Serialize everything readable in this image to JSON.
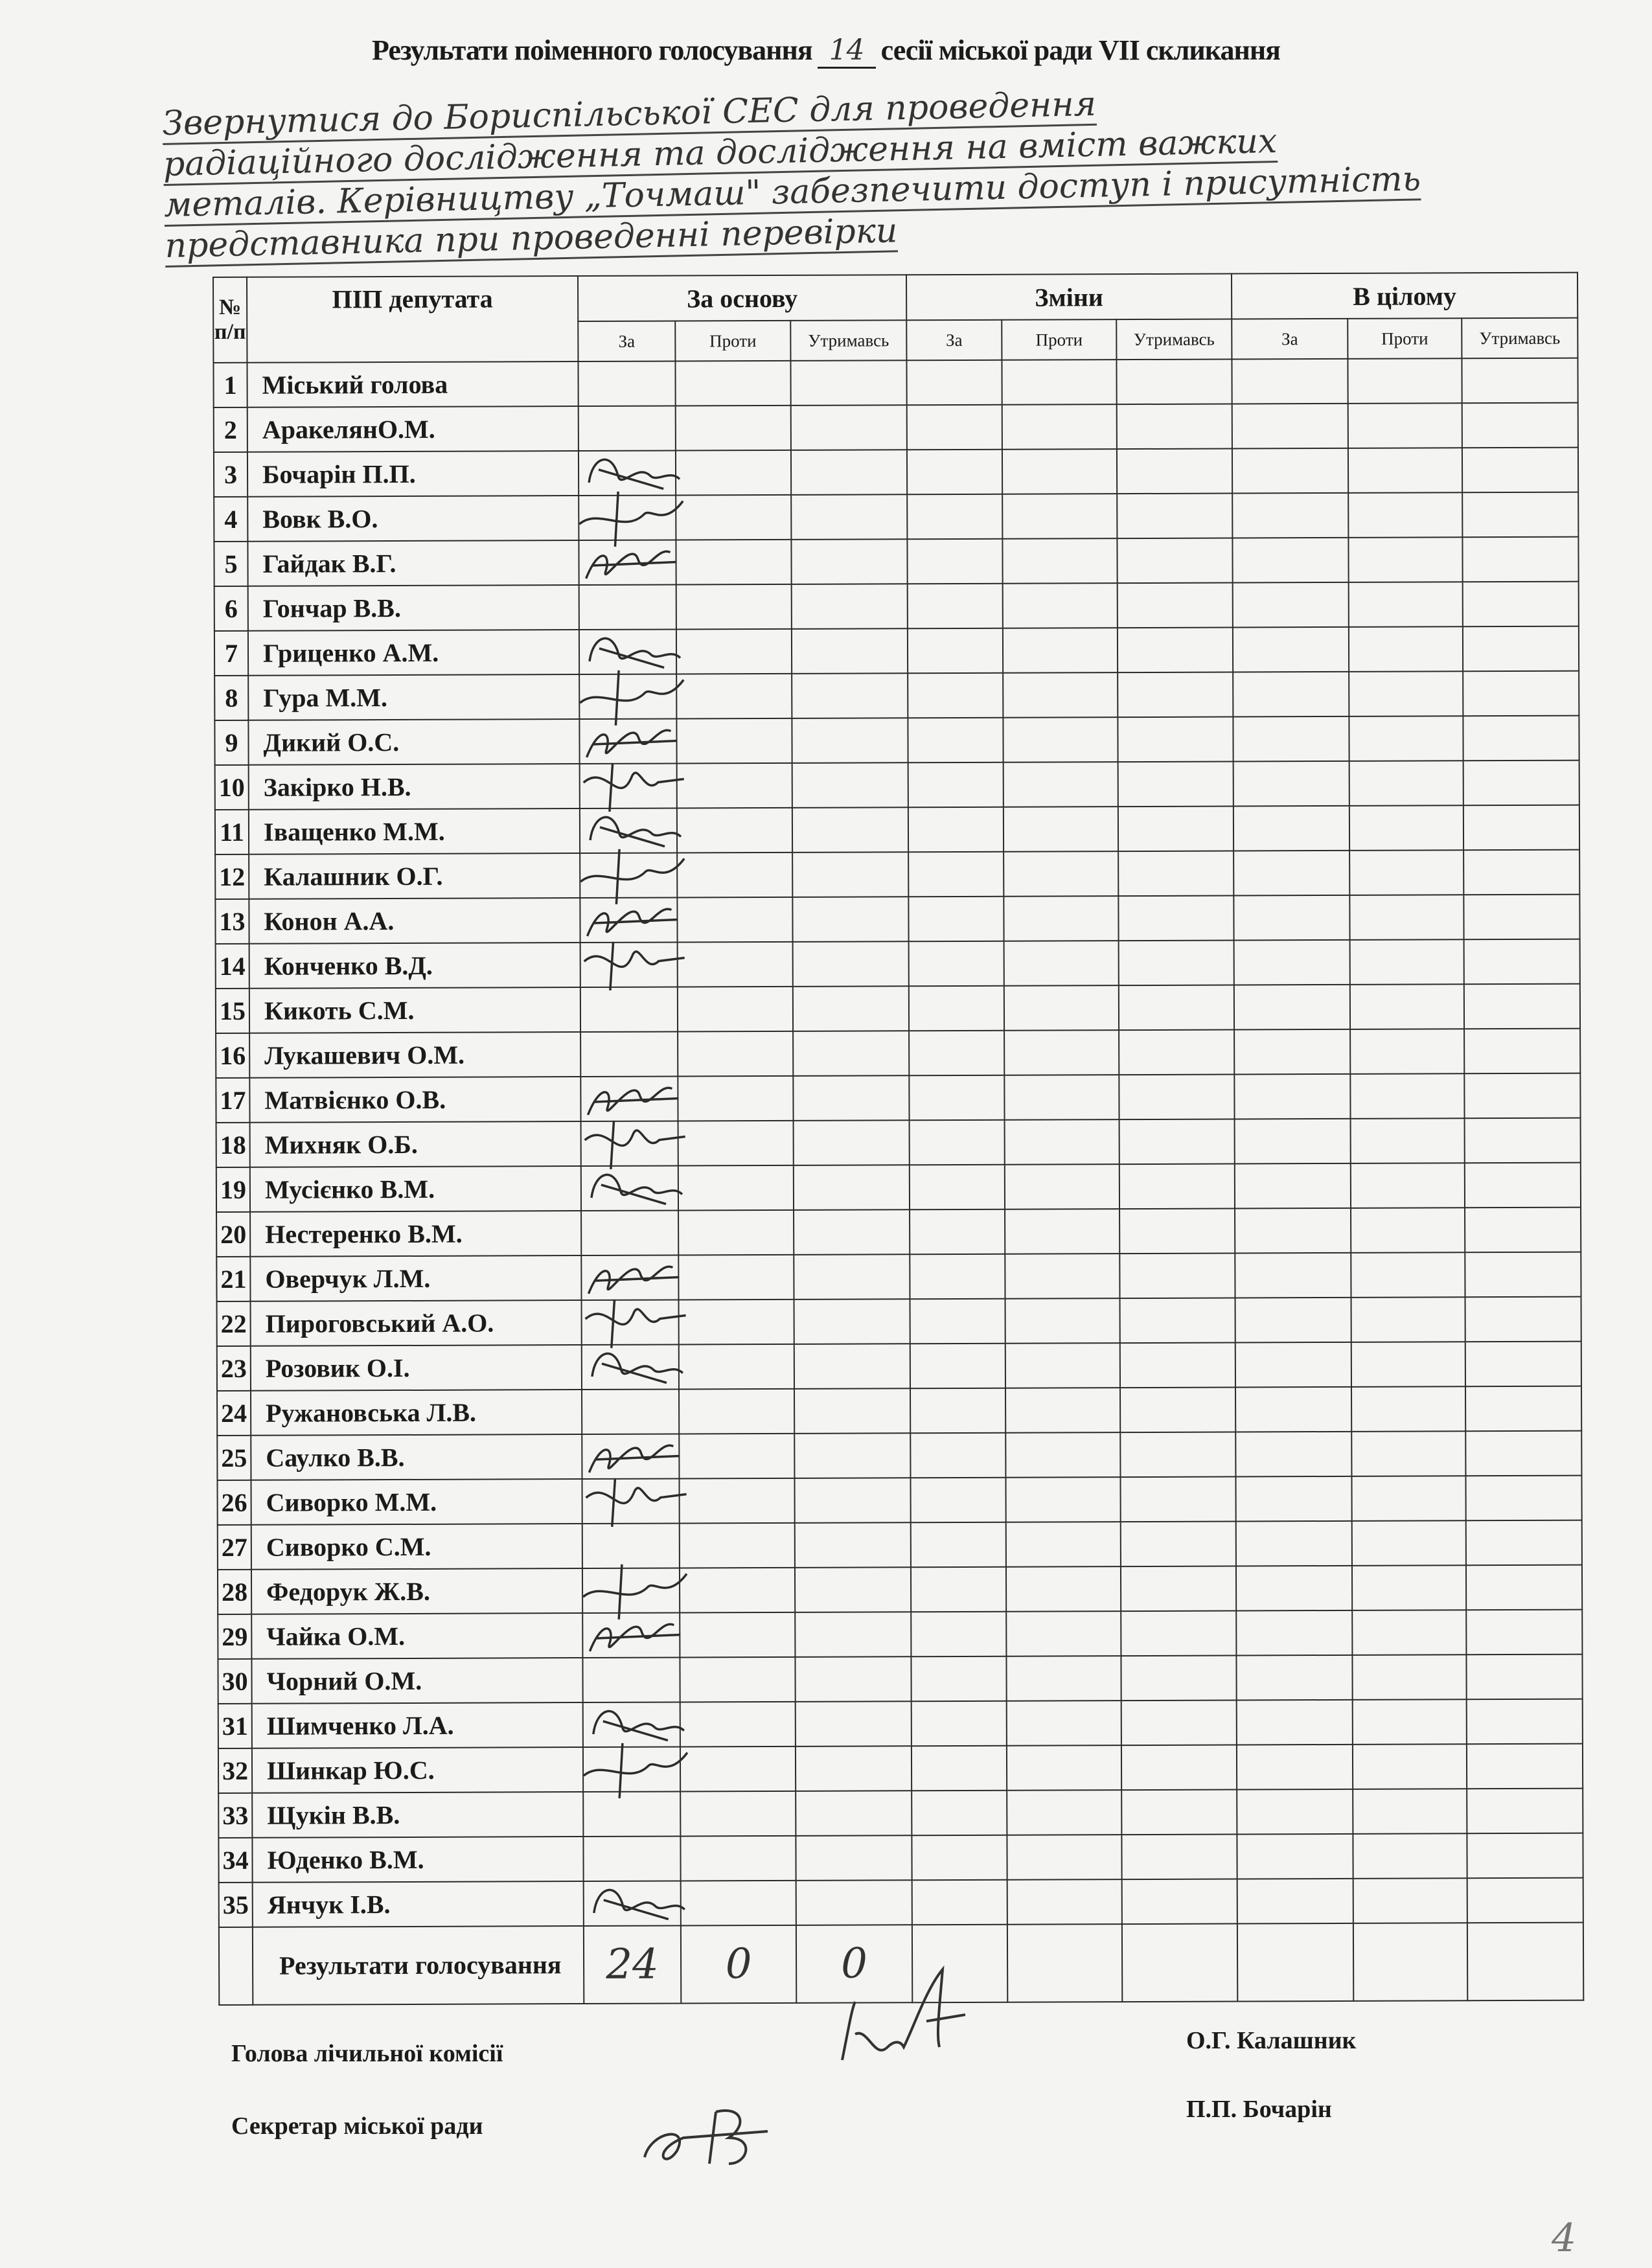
{
  "header": {
    "title_before": "Результати поіменного голосування",
    "session_number": "14",
    "title_after": "сесії міської ради VII скликання"
  },
  "subject_lines": [
    "Звернутися до Бориспільської СЕС для проведення",
    "радіаційного дослідження та дослідження на вміст важких",
    "металів. Керівництву „Точмаш\" забезпечити доступ і присутність",
    "представника при проведенні перевірки"
  ],
  "table": {
    "col_number": "№ п/п",
    "col_name": "ПІП депутата",
    "groups": [
      "За основу",
      "Зміни",
      "В цілому"
    ],
    "subcols": [
      "За",
      "Проти",
      "Утримавсь"
    ],
    "rows": [
      {
        "n": "1",
        "name": "Міський голова",
        "signed": false
      },
      {
        "n": "2",
        "name": "АракелянО.М.",
        "signed": false
      },
      {
        "n": "3",
        "name": "Бочарін П.П.",
        "signed": true
      },
      {
        "n": "4",
        "name": "Вовк В.О.",
        "signed": true
      },
      {
        "n": "5",
        "name": "Гайдак В.Г.",
        "signed": true
      },
      {
        "n": "6",
        "name": "Гончар В.В.",
        "signed": false
      },
      {
        "n": "7",
        "name": "Гриценко А.М.",
        "signed": true
      },
      {
        "n": "8",
        "name": "Гура М.М.",
        "signed": true
      },
      {
        "n": "9",
        "name": "Дикий О.С.",
        "signed": true
      },
      {
        "n": "10",
        "name": "Закірко Н.В.",
        "signed": true
      },
      {
        "n": "11",
        "name": "Іващенко М.М.",
        "signed": true
      },
      {
        "n": "12",
        "name": "Калашник О.Г.",
        "signed": true
      },
      {
        "n": "13",
        "name": "Конон А.А.",
        "signed": true
      },
      {
        "n": "14",
        "name": "Конченко В.Д.",
        "signed": true
      },
      {
        "n": "15",
        "name": "Кикоть С.М.",
        "signed": false
      },
      {
        "n": "16",
        "name": "Лукашевич О.М.",
        "signed": false
      },
      {
        "n": "17",
        "name": "Матвієнко О.В.",
        "signed": true
      },
      {
        "n": "18",
        "name": "Михняк О.Б.",
        "signed": true
      },
      {
        "n": "19",
        "name": "Мусієнко В.М.",
        "signed": true
      },
      {
        "n": "20",
        "name": "Нестеренко В.М.",
        "signed": false
      },
      {
        "n": "21",
        "name": "Оверчук Л.М.",
        "signed": true
      },
      {
        "n": "22",
        "name": "Пироговський А.О.",
        "signed": true
      },
      {
        "n": "23",
        "name": "Розовик О.І.",
        "signed": true
      },
      {
        "n": "24",
        "name": "Ружановська Л.В.",
        "signed": false
      },
      {
        "n": "25",
        "name": "Саулко В.В.",
        "signed": true
      },
      {
        "n": "26",
        "name": "Сиворко М.М.",
        "signed": true
      },
      {
        "n": "27",
        "name": "Сиворко С.М.",
        "signed": false
      },
      {
        "n": "28",
        "name": "Федорук Ж.В.",
        "signed": true
      },
      {
        "n": "29",
        "name": "Чайка О.М.",
        "signed": true
      },
      {
        "n": "30",
        "name": "Чорний О.М.",
        "signed": false
      },
      {
        "n": "31",
        "name": "Шимченко Л.А.",
        "signed": true
      },
      {
        "n": "32",
        "name": "Шинкар Ю.С.",
        "signed": true
      },
      {
        "n": "33",
        "name": "Щукін В.В.",
        "signed": false
      },
      {
        "n": "34",
        "name": "Юденко В.М.",
        "signed": false
      },
      {
        "n": "35",
        "name": "Янчук І.В.",
        "signed": true
      }
    ],
    "results_label": "Результати голосування",
    "results": {
      "za": "24",
      "proty": "0",
      "utrymavs": "0"
    }
  },
  "footer": {
    "counting_chair_label": "Голова лічильної комісії",
    "counting_chair_name": "О.Г. Калашник",
    "secretary_label": "Секретар міської ради",
    "secretary_name": "П.П. Бочарін"
  },
  "page_number": "4"
}
